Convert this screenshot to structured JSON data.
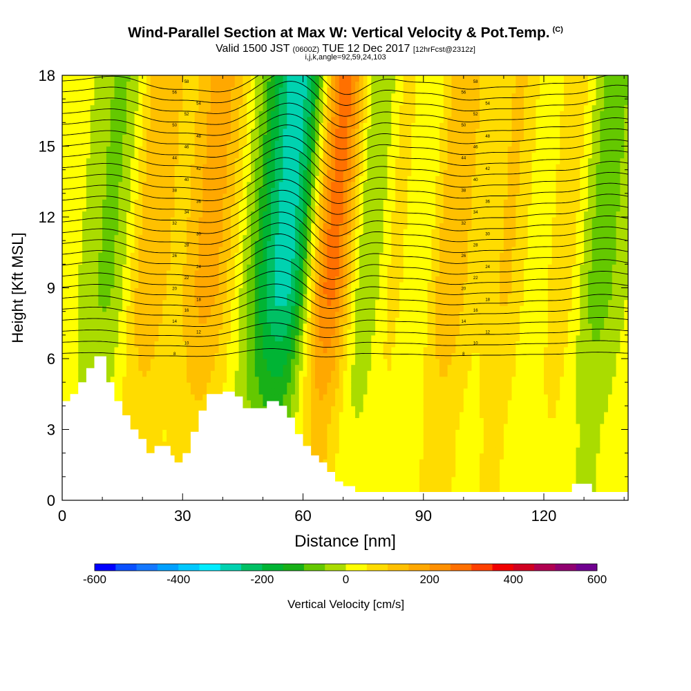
{
  "header": {
    "title": "Wind-Parallel Section at Max W: Vertical Velocity & Pot.Temp.",
    "title_tag": "(C)",
    "valid_a": "Valid 1500 JST",
    "valid_z": "(0600Z)",
    "valid_b": "TUE 12 Dec 2017",
    "valid_fcst": "[12hrFcst@2312z]",
    "indices": "i,j,k,angle=92,59,24,103"
  },
  "chart_data": {
    "type": "heatmap",
    "xlabel": "Distance [nm]",
    "ylabel": "Height [Kft MSL]",
    "xlim": [
      0,
      141
    ],
    "ylim": [
      0,
      18
    ],
    "x_ticks": [
      0,
      30,
      60,
      90,
      120
    ],
    "y_ticks": [
      0,
      3,
      6,
      9,
      12,
      15,
      18
    ],
    "colorbar": {
      "label": "Vertical Velocity [cm/s]",
      "min": -600,
      "max": 600,
      "step": 50,
      "tick_values": [
        -600,
        -400,
        -200,
        0,
        200,
        400,
        600
      ],
      "colors": [
        "#0000ff",
        "#0a50ff",
        "#1478ff",
        "#00a0ff",
        "#00c8ff",
        "#00ecff",
        "#00d2b0",
        "#00c064",
        "#00b434",
        "#18b018",
        "#64c800",
        "#aadc00",
        "#ffff00",
        "#ffdc00",
        "#ffc000",
        "#ffa800",
        "#ff9000",
        "#ff7000",
        "#ff4000",
        "#f00000",
        "#d00020",
        "#b00050",
        "#900070",
        "#700090"
      ]
    },
    "terrain_kft": [
      {
        "x": 0,
        "h": 4.2
      },
      {
        "x": 2,
        "h": 4.5
      },
      {
        "x": 4,
        "h": 5.0
      },
      {
        "x": 6,
        "h": 5.6
      },
      {
        "x": 8,
        "h": 6.1
      },
      {
        "x": 10,
        "h": 6.1
      },
      {
        "x": 11,
        "h": 5.0
      },
      {
        "x": 13,
        "h": 4.2
      },
      {
        "x": 15,
        "h": 3.6
      },
      {
        "x": 17,
        "h": 3.0
      },
      {
        "x": 19,
        "h": 2.6
      },
      {
        "x": 21,
        "h": 2.0
      },
      {
        "x": 23,
        "h": 2.3
      },
      {
        "x": 25,
        "h": 2.3
      },
      {
        "x": 27,
        "h": 1.9
      },
      {
        "x": 28,
        "h": 1.6
      },
      {
        "x": 30,
        "h": 2.0
      },
      {
        "x": 32,
        "h": 2.9
      },
      {
        "x": 34,
        "h": 3.8
      },
      {
        "x": 36,
        "h": 4.5
      },
      {
        "x": 40,
        "h": 4.6
      },
      {
        "x": 43,
        "h": 4.4
      },
      {
        "x": 45,
        "h": 3.9
      },
      {
        "x": 48,
        "h": 3.9
      },
      {
        "x": 51,
        "h": 4.2
      },
      {
        "x": 54,
        "h": 4.0
      },
      {
        "x": 56,
        "h": 3.5
      },
      {
        "x": 58,
        "h": 2.8
      },
      {
        "x": 60,
        "h": 2.3
      },
      {
        "x": 62,
        "h": 1.9
      },
      {
        "x": 64,
        "h": 1.6
      },
      {
        "x": 66,
        "h": 1.2
      },
      {
        "x": 68,
        "h": 0.8
      },
      {
        "x": 70,
        "h": 0.6
      },
      {
        "x": 73,
        "h": 0.35
      },
      {
        "x": 126,
        "h": 0.35
      },
      {
        "x": 127,
        "h": 0.7
      },
      {
        "x": 131,
        "h": 0.7
      },
      {
        "x": 132,
        "h": 0.35
      },
      {
        "x": 141,
        "h": 0.35
      }
    ],
    "waves": [
      {
        "x": 16,
        "sign": -1,
        "amp": 300,
        "width": 6
      },
      {
        "x": 20,
        "sign": 1,
        "amp": 380,
        "width": 6
      },
      {
        "x": 28,
        "sign": -1,
        "amp": 180,
        "width": 5
      },
      {
        "x": 34,
        "sign": 1,
        "amp": 200,
        "width": 6
      },
      {
        "x": 57,
        "sign": -1,
        "amp": 360,
        "width": 7
      },
      {
        "x": 66,
        "sign": 1,
        "amp": 420,
        "width": 5
      },
      {
        "x": 76,
        "sign": -1,
        "amp": 220,
        "width": 5
      },
      {
        "x": 82,
        "sign": 1,
        "amp": 220,
        "width": 5
      },
      {
        "x": 88,
        "sign": -1,
        "amp": 200,
        "width": 5
      },
      {
        "x": 96,
        "sign": 1,
        "amp": 200,
        "width": 6
      },
      {
        "x": 104,
        "sign": -1,
        "amp": 160,
        "width": 5
      },
      {
        "x": 110,
        "sign": 1,
        "amp": 180,
        "width": 6
      },
      {
        "x": 118,
        "sign": -1,
        "amp": 180,
        "width": 5
      },
      {
        "x": 124,
        "sign": 1,
        "amp": 170,
        "width": 6
      },
      {
        "x": 132,
        "sign": -1,
        "amp": 160,
        "width": 5
      }
    ],
    "theta_contours_c": {
      "count": 26,
      "labels": [
        "8",
        "10",
        "12",
        "14",
        "16",
        "18",
        "20",
        "22",
        "24",
        "26",
        "28",
        "30",
        "32",
        "34",
        "36",
        "38",
        "40",
        "42",
        "44",
        "46",
        "48",
        "50",
        "52",
        "54",
        "56",
        "58"
      ]
    }
  }
}
